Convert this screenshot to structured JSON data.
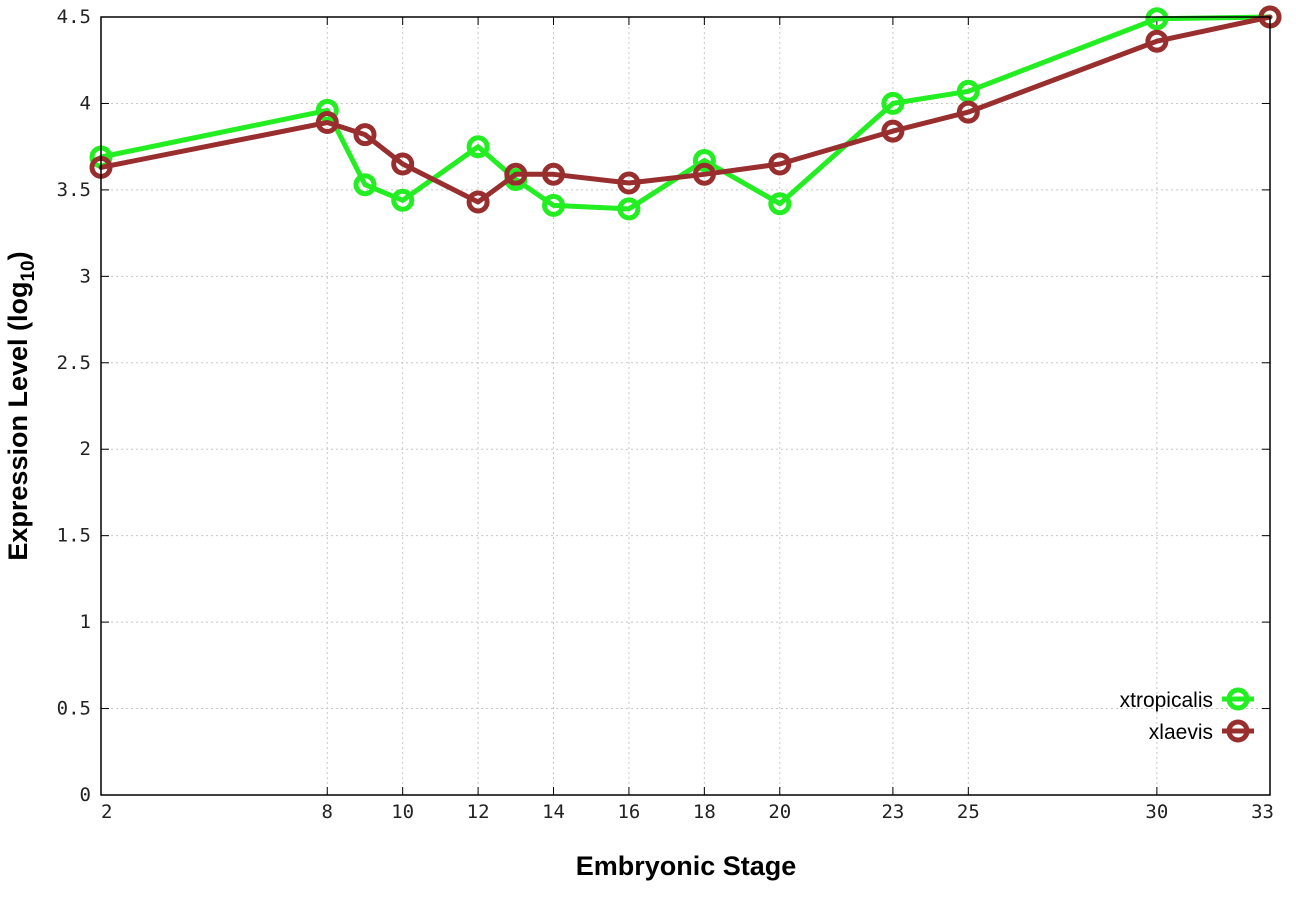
{
  "chart_data": {
    "type": "line",
    "title": "",
    "xlabel": "Embryonic Stage",
    "ylabel_main": "Expression Level (log",
    "ylabel_sub": "10",
    "ylabel_close": ")",
    "x_ticks": [
      2,
      8,
      10,
      12,
      14,
      16,
      18,
      20,
      23,
      25,
      30,
      33
    ],
    "y_ticks": [
      "0",
      "0.5",
      "1",
      "1.5",
      "2",
      "2.5",
      "3",
      "3.5",
      "4",
      "4.5"
    ],
    "xlim": [
      2,
      33
    ],
    "ylim": [
      0,
      4.5
    ],
    "grid": true,
    "legend_position": "bottom-right",
    "series": [
      {
        "name": "xtropicalis",
        "color": "#22ee22",
        "x": [
          2,
          8,
          9,
          10,
          12,
          13,
          14,
          16,
          18,
          20,
          23,
          25,
          30,
          33
        ],
        "y": [
          3.69,
          3.96,
          3.53,
          3.44,
          3.75,
          3.56,
          3.41,
          3.39,
          3.67,
          3.42,
          4.0,
          4.07,
          4.49,
          4.5
        ]
      },
      {
        "name": "xlaevis",
        "color": "#992e2e",
        "x": [
          2,
          8,
          9,
          10,
          12,
          13,
          14,
          16,
          18,
          20,
          23,
          25,
          30,
          33
        ],
        "y": [
          3.63,
          3.89,
          3.82,
          3.65,
          3.43,
          3.59,
          3.59,
          3.54,
          3.59,
          3.65,
          3.84,
          3.95,
          4.36,
          4.5
        ]
      }
    ]
  }
}
